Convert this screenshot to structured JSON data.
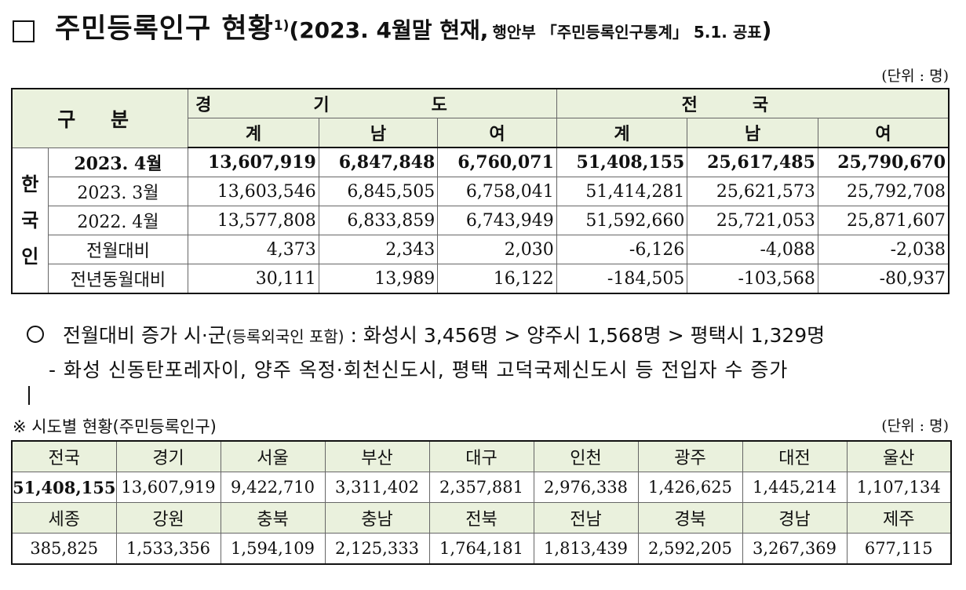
{
  "title": {
    "box": "□",
    "main": "주민등록인구 현황",
    "sup": "1)",
    "paren_open": "(2023. 4월말 현재,",
    "source": "행안부 「주민등록인구통계」 5.1. 공표",
    "paren_close": ")"
  },
  "unit_label": "(단위 : 명)",
  "table1": {
    "header": {
      "gubun": "구 분",
      "gyeonggi": "경기도",
      "nation": "전국",
      "sub": [
        "계",
        "남",
        "여",
        "계",
        "남",
        "여"
      ]
    },
    "side_label": [
      "한",
      "국",
      "인"
    ],
    "rows": [
      {
        "label": "2023. 4월",
        "values": [
          "13,607,919",
          "6,847,848",
          "6,760,071",
          "51,408,155",
          "25,617,485",
          "25,790,670"
        ]
      },
      {
        "label": "2023. 3월",
        "values": [
          "13,603,546",
          "6,845,505",
          "6,758,041",
          "51,414,281",
          "25,621,573",
          "25,792,708"
        ]
      },
      {
        "label": "2022. 4월",
        "values": [
          "13,577,808",
          "6,833,859",
          "6,743,949",
          "51,592,660",
          "25,721,053",
          "25,871,607"
        ]
      },
      {
        "label": "전월대비",
        "values": [
          "4,373",
          "2,343",
          "2,030",
          "-6,126",
          "-4,088",
          "-2,038"
        ]
      },
      {
        "label": "전년동월대비",
        "values": [
          "30,111",
          "13,989",
          "16,122",
          "-184,505",
          "-103,568",
          "-80,937"
        ]
      }
    ]
  },
  "bullet": {
    "lead": "전월대비 증가 시·군",
    "paren": "(등록외국인 포함)",
    "rest": " : 화성시 3,456명 > 양주시 1,568명 > 평택시 1,329명"
  },
  "sub_bullet": "- 화성 신동탄포레자이, 양주 옥정·회천신도시, 평택 고덕국제신도시 등 전입자 수 증가",
  "note": "※ 시도별 현황(주민등록인구)",
  "table2": {
    "row1_names": [
      "전국",
      "경기",
      "서울",
      "부산",
      "대구",
      "인천",
      "광주",
      "대전",
      "울산"
    ],
    "row1_values": [
      "51,408,155",
      "13,607,919",
      "9,422,710",
      "3,311,402",
      "2,357,881",
      "2,976,338",
      "1,426,625",
      "1,445,214",
      "1,107,134"
    ],
    "row2_names": [
      "세종",
      "강원",
      "충북",
      "충남",
      "전북",
      "전남",
      "경북",
      "경남",
      "제주"
    ],
    "row2_values": [
      "385,825",
      "1,533,356",
      "1,594,109",
      "2,125,333",
      "1,764,181",
      "1,813,439",
      "2,592,205",
      "3,267,369",
      "677,115"
    ]
  },
  "colors": {
    "header_bg": "#eaf1dd",
    "border": "#111111"
  }
}
